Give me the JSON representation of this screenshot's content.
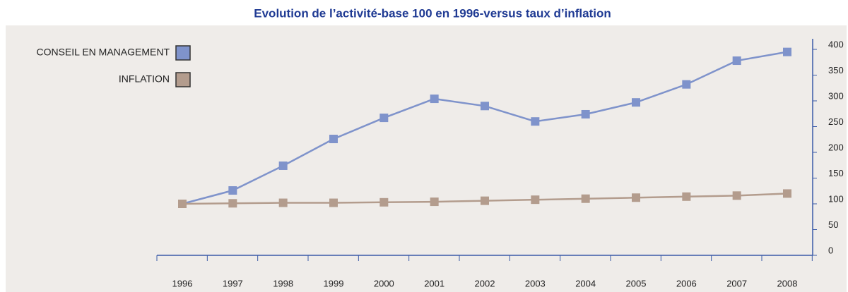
{
  "chart_data": {
    "type": "line",
    "title": "Evolution de l’activité-base 100 en 1996-versus taux d’inflation",
    "categories": [
      "1996",
      "1997",
      "1998",
      "1999",
      "2000",
      "2001",
      "2002",
      "2003",
      "2004",
      "2005",
      "2006",
      "2007",
      "2008"
    ],
    "series": [
      {
        "name": "CONSEIL EN MANAGEMENT",
        "color": "#7f93cb",
        "values": [
          100,
          126,
          174,
          226,
          267,
          304,
          290,
          260,
          274,
          297,
          332,
          378,
          395
        ]
      },
      {
        "name": "INFLATION",
        "color": "#b39c8d",
        "values": [
          100,
          101,
          102,
          102,
          103,
          104,
          106,
          108,
          110,
          112,
          114,
          116,
          120
        ]
      }
    ],
    "ylim": [
      0,
      400
    ],
    "yticks": [
      0,
      50,
      100,
      150,
      200,
      250,
      300,
      350,
      400
    ],
    "yaxis_side": "right",
    "legend": "top-left"
  }
}
